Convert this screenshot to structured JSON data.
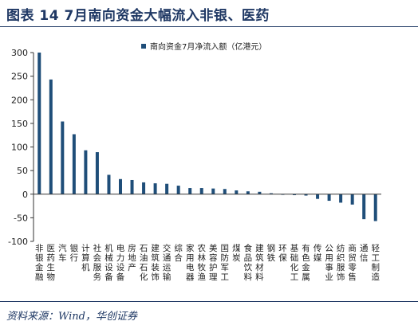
{
  "figure": {
    "title": "图表 14   7月南向资金大幅流入非银、医药",
    "source": "资料来源：Wind，华创证券"
  },
  "colors": {
    "bar": "#1f4e79",
    "axis": "#333333",
    "text": "#222222",
    "title": "#1f3864"
  },
  "chart_data": {
    "type": "bar",
    "legend": "南向资金7月净流入额（亿港元）",
    "legend_position": "top-center",
    "grid": false,
    "ylim": [
      -100,
      300
    ],
    "yticks": [
      -100,
      -50,
      0,
      50,
      100,
      150,
      200,
      250,
      300
    ],
    "categories": [
      "非银金融",
      "医药生物",
      "汽车",
      "银行",
      "计算机",
      "社会服务",
      "机械设备",
      "电力设备",
      "房地产",
      "石油石化",
      "建筑装饰",
      "交通运输",
      "综合",
      "家用电器",
      "农林牧渔",
      "美容护理",
      "国防军工",
      "煤炭",
      "食品饮料",
      "建筑材料",
      "钢铁",
      "环保",
      "基础化工",
      "有色金属",
      "传媒",
      "公用事业",
      "纺织服饰",
      "商贸零售",
      "通信",
      "轻工制造"
    ],
    "series": [
      {
        "values": [
          300,
          243,
          154,
          127,
          93,
          89,
          41,
          32,
          30,
          25,
          23,
          22,
          18,
          13,
          13,
          12,
          11,
          8,
          6,
          5,
          2,
          -1,
          -2,
          -3,
          -10,
          -14,
          -18,
          -22,
          -53,
          -57
        ]
      }
    ]
  }
}
